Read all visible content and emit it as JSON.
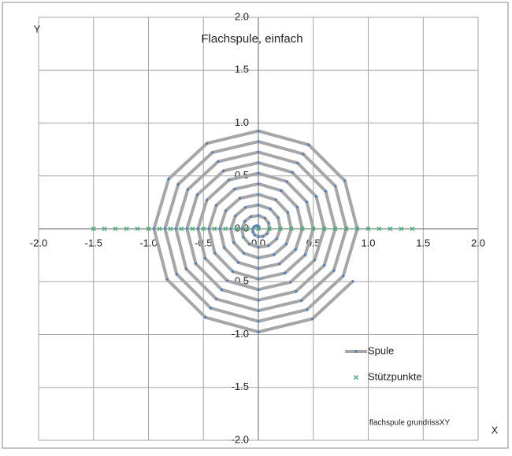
{
  "chart_data": {
    "type": "scatter",
    "title": "Flachspule, einfach",
    "x_label": "X",
    "y_label": "Y",
    "annotation": "flachspule grundrissXY",
    "xlim": [
      -2,
      2
    ],
    "ylim": [
      -2,
      2
    ],
    "xticks": [
      {
        "value": -2,
        "label": "-2.0"
      },
      {
        "value": -1.5,
        "label": "-1.5"
      },
      {
        "value": -1,
        "label": "-1.0"
      },
      {
        "value": -0.5,
        "label": "-0.5"
      },
      {
        "value": 0,
        "label": "0.0"
      },
      {
        "value": 0.5,
        "label": "0.5"
      },
      {
        "value": 1,
        "label": "1.0"
      },
      {
        "value": 1.5,
        "label": "1.5"
      },
      {
        "value": 2,
        "label": "2.0"
      }
    ],
    "yticks": [
      {
        "value": -2,
        "label": "-2.0"
      },
      {
        "value": -1.5,
        "label": "-1.5"
      },
      {
        "value": -1,
        "label": "-1.0"
      },
      {
        "value": -0.5,
        "label": "-0.5"
      },
      {
        "value": 0,
        "label": "0.0"
      },
      {
        "value": 0.5,
        "label": "0.5"
      },
      {
        "value": 1,
        "label": "1.0"
      },
      {
        "value": 1.5,
        "label": "1.5"
      },
      {
        "value": 2,
        "label": "2.0"
      }
    ],
    "grid": true,
    "series": [
      {
        "name": "Spule",
        "color": "#a6a6a6",
        "marker_color": "#4f81bd",
        "line": true,
        "marker": "dot",
        "x": [
          0,
          0.007,
          0.008,
          0,
          -0.017,
          -0.036,
          -0.05,
          -0.05,
          -0.033,
          0,
          0.042,
          0.079,
          0.1,
          0.094,
          0.058,
          0,
          -0.067,
          -0.123,
          -0.15,
          -0.137,
          -0.083,
          0,
          0.092,
          0.166,
          0.2,
          0.18,
          0.108,
          0,
          -0.117,
          -0.209,
          -0.25,
          -0.224,
          -0.133,
          0,
          0.142,
          0.253,
          0.3,
          0.267,
          0.158,
          0,
          -0.167,
          -0.296,
          -0.35,
          -0.31,
          -0.183,
          0,
          0.192,
          0.339,
          0.4,
          0.354,
          0.208,
          0,
          -0.217,
          -0.383,
          -0.45,
          -0.397,
          -0.233,
          0,
          0.242,
          0.426,
          0.5,
          0.44,
          0.258,
          0,
          -0.267,
          -0.469,
          -0.55,
          -0.484,
          -0.283,
          0,
          0.292,
          0.512,
          0.6,
          0.527,
          0.308,
          0,
          -0.317,
          -0.556,
          -0.65,
          -0.57,
          -0.333,
          0,
          0.342,
          0.599,
          0.7,
          0.613,
          0.358,
          0,
          -0.367,
          -0.642,
          -0.75,
          -0.657,
          -0.383,
          0,
          0.392,
          0.686,
          0.8,
          0.7,
          0.408,
          0,
          -0.417,
          -0.729,
          -0.85,
          -0.743,
          -0.433,
          0,
          0.442,
          0.772,
          0.9,
          0.787,
          0.458,
          0,
          -0.467,
          -0.816,
          -0.95,
          -0.83,
          -0.483,
          0,
          0.492,
          0.86
        ],
        "y": [
          0,
          0.004,
          0.014,
          0.025,
          0.029,
          0.021,
          0,
          -0.029,
          -0.058,
          -0.075,
          -0.072,
          -0.046,
          0,
          0.054,
          0.101,
          0.125,
          0.115,
          0.071,
          0,
          -0.079,
          -0.144,
          -0.175,
          -0.159,
          -0.096,
          0,
          0.104,
          0.188,
          0.225,
          0.202,
          0.121,
          0,
          -0.129,
          -0.231,
          -0.275,
          -0.245,
          -0.146,
          0,
          0.154,
          0.274,
          0.325,
          0.289,
          0.171,
          0,
          -0.179,
          -0.318,
          -0.375,
          -0.332,
          -0.196,
          0,
          0.204,
          0.361,
          0.425,
          0.375,
          0.221,
          0,
          -0.229,
          -0.404,
          -0.475,
          -0.419,
          -0.246,
          0,
          0.254,
          0.447,
          0.525,
          0.462,
          0.271,
          0,
          -0.279,
          -0.491,
          -0.575,
          -0.505,
          -0.296,
          0,
          0.304,
          0.534,
          0.625,
          0.548,
          0.321,
          0,
          -0.329,
          -0.577,
          -0.675,
          -0.592,
          -0.346,
          0,
          0.354,
          0.621,
          0.725,
          0.635,
          0.371,
          0,
          -0.379,
          -0.664,
          -0.775,
          -0.678,
          -0.396,
          0,
          0.404,
          0.707,
          0.825,
          0.722,
          0.421,
          0,
          -0.429,
          -0.75,
          -0.875,
          -0.765,
          -0.446,
          0,
          0.454,
          0.794,
          0.925,
          0.808,
          0.471,
          0,
          -0.479,
          -0.837,
          -0.975,
          -0.852,
          -0.496
        ]
      },
      {
        "name": "Stützpunkte",
        "color": "#3cb371",
        "line": false,
        "marker": "x",
        "x": [
          -1.5,
          -1.4,
          -1.3,
          -1.2,
          -1.1,
          -1,
          -0.9,
          -0.8,
          -0.7,
          -0.6,
          -0.5,
          -0.4,
          -0.3,
          -0.2,
          -0.1,
          0,
          0.1,
          0.2,
          0.3,
          0.4,
          0.5,
          0.6,
          0.7,
          0.8,
          0.9,
          1,
          1.1,
          1.2,
          1.3,
          1.4
        ],
        "y": [
          0,
          0,
          0,
          0,
          0,
          0,
          0,
          0,
          0,
          0,
          0,
          0,
          0,
          0,
          0,
          0,
          0,
          0,
          0,
          0,
          0,
          0,
          0,
          0,
          0,
          0,
          0,
          0,
          0,
          0
        ]
      }
    ]
  }
}
